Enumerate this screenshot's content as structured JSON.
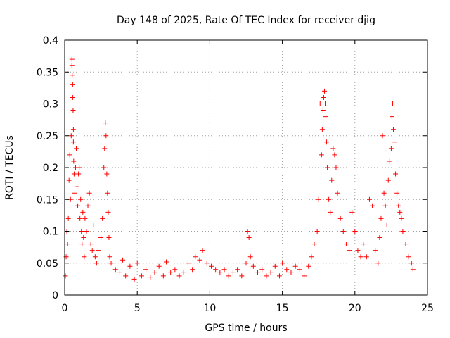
{
  "chart_data": {
    "type": "scatter",
    "title": "Day 148 of 2025, Rate Of TEC Index for receiver djig",
    "xlabel": "GPS time / hours",
    "ylabel": "ROTI / TECUs",
    "xlim": [
      0,
      25
    ],
    "ylim": [
      0,
      0.4
    ],
    "xticks": [
      0,
      5,
      10,
      15,
      20,
      25
    ],
    "xtick_labels": [
      "0",
      "5",
      "10",
      "15",
      "20",
      "25"
    ],
    "yticks": [
      0,
      0.05,
      0.1,
      0.15,
      0.2,
      0.25,
      0.3,
      0.35,
      0.4
    ],
    "ytick_labels": [
      "0",
      "0.05",
      "0.1",
      "0.15",
      "0.2",
      "0.25",
      "0.3",
      "0.35",
      "0.4"
    ],
    "grid": true,
    "marker": "+",
    "color": "#ff0000",
    "series": [
      {
        "x": [
          0.05,
          0.1,
          0.15,
          0.2,
          0.25,
          0.3,
          0.35,
          0.4,
          0.45,
          0.5,
          0.5,
          0.52,
          0.55,
          0.55,
          0.58,
          0.6,
          0.6,
          0.62,
          0.65,
          0.7,
          0.75,
          0.8,
          0.85,
          0.9,
          0.95,
          1.0,
          1.05,
          1.1,
          1.15,
          1.2,
          1.25,
          1.3,
          1.35,
          1.4,
          1.5,
          1.6,
          1.7,
          1.8,
          1.9,
          2.0,
          2.1,
          2.2,
          2.3,
          2.5,
          2.6,
          2.7,
          2.75,
          2.8,
          2.85,
          2.9,
          2.95,
          3.0,
          3.05,
          3.1,
          3.2,
          3.5,
          3.8,
          4.0,
          4.2,
          4.5,
          4.8,
          5.0,
          5.3,
          5.6,
          5.9,
          6.2,
          6.5,
          6.8,
          7.0,
          7.3,
          7.6,
          7.9,
          8.2,
          8.5,
          8.8,
          9.0,
          9.3,
          9.5,
          9.8,
          10.1,
          10.4,
          10.7,
          11.0,
          11.3,
          11.6,
          11.9,
          12.2,
          12.5,
          12.6,
          12.7,
          12.8,
          13.0,
          13.3,
          13.6,
          13.9,
          14.2,
          14.5,
          14.8,
          15.0,
          15.3,
          15.6,
          15.9,
          16.2,
          16.5,
          16.8,
          17.0,
          17.2,
          17.4,
          17.5,
          17.6,
          17.7,
          17.75,
          17.8,
          17.85,
          17.9,
          17.95,
          18.0,
          18.05,
          18.1,
          18.2,
          18.3,
          18.4,
          18.5,
          18.6,
          18.7,
          18.8,
          19.0,
          19.2,
          19.4,
          19.6,
          19.8,
          20.0,
          20.2,
          20.4,
          20.6,
          20.8,
          21.0,
          21.2,
          21.4,
          21.6,
          21.7,
          21.8,
          21.9,
          22.0,
          22.1,
          22.2,
          22.3,
          22.4,
          22.5,
          22.55,
          22.6,
          22.65,
          22.7,
          22.8,
          22.9,
          23.0,
          23.1,
          23.2,
          23.3,
          23.5,
          23.7,
          23.9,
          24.0
        ],
        "y": [
          0.03,
          0.06,
          0.1,
          0.08,
          0.12,
          0.18,
          0.22,
          0.15,
          0.25,
          0.37,
          0.36,
          0.345,
          0.33,
          0.31,
          0.29,
          0.26,
          0.24,
          0.21,
          0.19,
          0.16,
          0.2,
          0.23,
          0.17,
          0.14,
          0.19,
          0.2,
          0.12,
          0.15,
          0.1,
          0.08,
          0.13,
          0.09,
          0.06,
          0.12,
          0.1,
          0.14,
          0.16,
          0.08,
          0.07,
          0.11,
          0.06,
          0.05,
          0.07,
          0.09,
          0.12,
          0.2,
          0.23,
          0.27,
          0.25,
          0.19,
          0.16,
          0.13,
          0.09,
          0.06,
          0.05,
          0.04,
          0.035,
          0.055,
          0.03,
          0.045,
          0.025,
          0.05,
          0.03,
          0.04,
          0.028,
          0.035,
          0.045,
          0.03,
          0.052,
          0.035,
          0.04,
          0.03,
          0.035,
          0.05,
          0.04,
          0.06,
          0.055,
          0.07,
          0.05,
          0.045,
          0.04,
          0.035,
          0.04,
          0.03,
          0.035,
          0.04,
          0.03,
          0.05,
          0.1,
          0.09,
          0.06,
          0.045,
          0.035,
          0.04,
          0.03,
          0.035,
          0.045,
          0.03,
          0.05,
          0.04,
          0.035,
          0.045,
          0.04,
          0.03,
          0.045,
          0.06,
          0.08,
          0.1,
          0.15,
          0.3,
          0.22,
          0.26,
          0.29,
          0.31,
          0.32,
          0.3,
          0.28,
          0.24,
          0.2,
          0.15,
          0.13,
          0.18,
          0.23,
          0.22,
          0.2,
          0.16,
          0.12,
          0.1,
          0.08,
          0.07,
          0.13,
          0.1,
          0.07,
          0.06,
          0.08,
          0.06,
          0.15,
          0.14,
          0.07,
          0.05,
          0.09,
          0.12,
          0.25,
          0.16,
          0.14,
          0.11,
          0.18,
          0.21,
          0.23,
          0.28,
          0.3,
          0.26,
          0.24,
          0.19,
          0.16,
          0.14,
          0.13,
          0.12,
          0.1,
          0.08,
          0.06,
          0.05,
          0.04
        ]
      }
    ]
  }
}
